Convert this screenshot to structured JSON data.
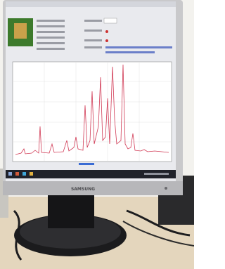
{
  "monitor": {
    "brand": "SAMSUNG"
  }
}
